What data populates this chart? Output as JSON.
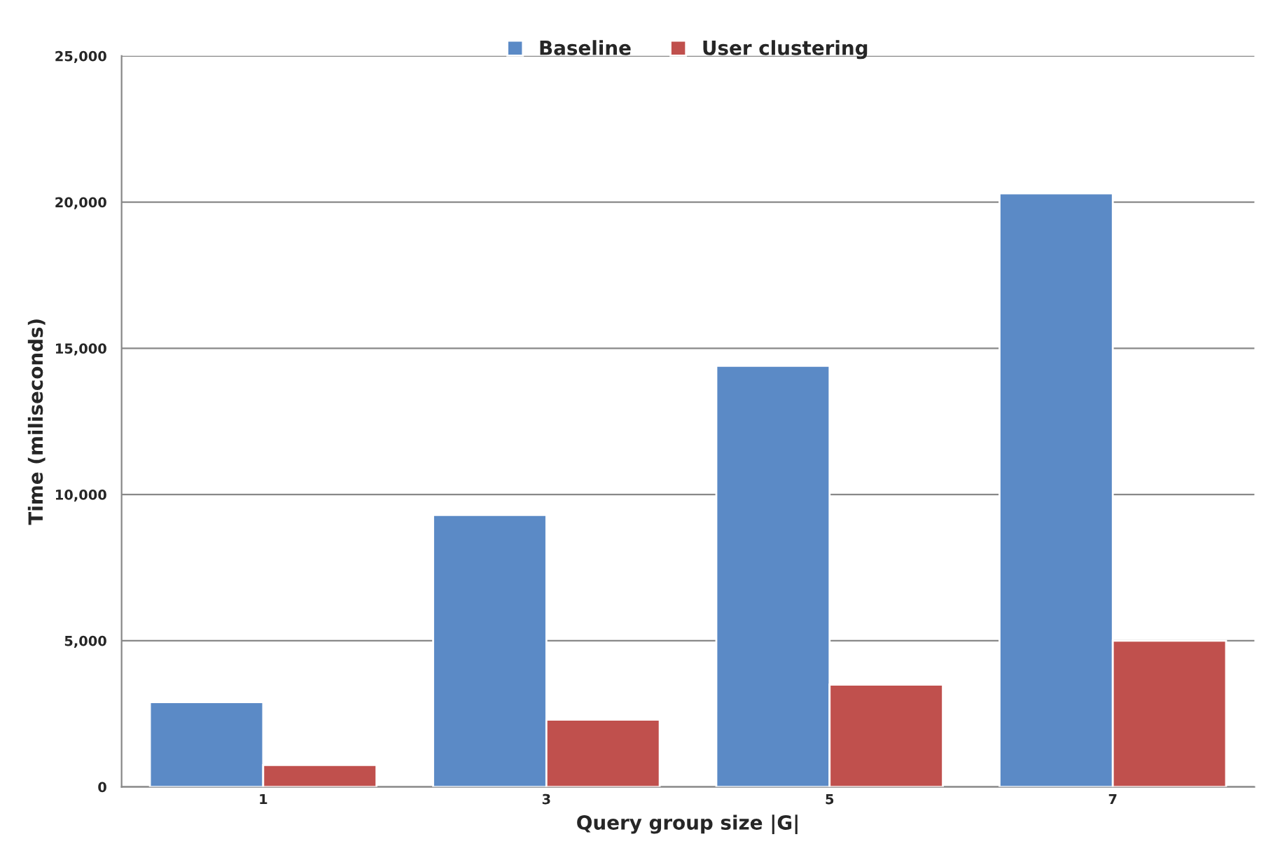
{
  "chart_data": {
    "type": "bar",
    "xlabel": "Query group size |G|",
    "ylabel": "Time (miliseconds)",
    "categories": [
      "1",
      "3",
      "5",
      "7"
    ],
    "series": [
      {
        "name": "Baseline",
        "color": "#5b8ac6",
        "values": [
          2900,
          9300,
          14400,
          20300
        ]
      },
      {
        "name": "User clustering",
        "color": "#c0504d",
        "values": [
          750,
          2300,
          3500,
          5000
        ]
      }
    ],
    "ylim": [
      0,
      25000
    ],
    "yticks": [
      {
        "value": 0,
        "label": "0"
      },
      {
        "value": 5000,
        "label": "5,000"
      },
      {
        "value": 10000,
        "label": "10,000"
      },
      {
        "value": 15000,
        "label": "15,000"
      },
      {
        "value": 20000,
        "label": "20,000"
      },
      {
        "value": 25000,
        "label": "25,000"
      }
    ],
    "grid": "y",
    "legend": "top"
  }
}
